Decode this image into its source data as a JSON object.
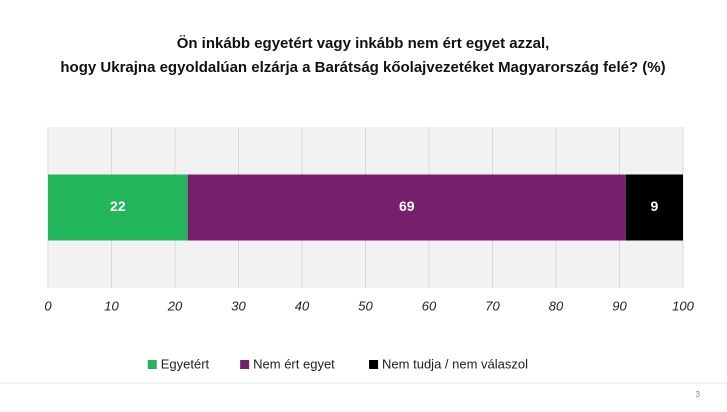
{
  "chart_data": {
    "type": "stacked-bar-horizontal",
    "title": "Ön inkább egyetért vagy inkább nem ért egyet azzal, hogy Ukrajna egyoldalúan elzárja a Barátság kőolajvezetéket Magyarország felé? (%)",
    "categories": [
      null
    ],
    "series": [
      {
        "name": "Egyetért",
        "color": "#22b55a",
        "values": [
          22
        ]
      },
      {
        "name": "Nem ért egyet",
        "color": "#76206b",
        "values": [
          69
        ]
      },
      {
        "name": "Nem tudja / nem válaszol",
        "color": "#000000",
        "values": [
          9
        ]
      }
    ],
    "xlim": [
      0,
      100
    ],
    "xticks": [
      0,
      10,
      20,
      30,
      40,
      50,
      60,
      70,
      80,
      90,
      100
    ],
    "grid": true,
    "legend": "bottom"
  },
  "page_number": "3"
}
